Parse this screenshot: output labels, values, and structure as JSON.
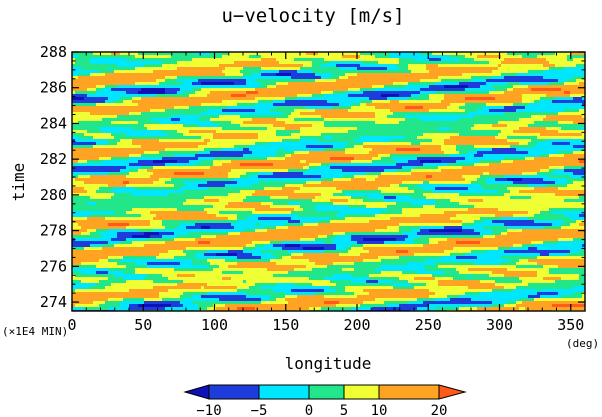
{
  "chart_data": {
    "type": "heatmap",
    "title": "u−velocity [m/s]",
    "xlabel": "longitude",
    "ylabel": "time",
    "x_unit": "(deg)",
    "y_unit": "(×1E4 MIN)",
    "xlim": [
      0,
      360
    ],
    "ylim": [
      273.5,
      288
    ],
    "x_ticks": [
      0,
      50,
      100,
      150,
      200,
      250,
      300,
      350
    ],
    "y_ticks": [
      274,
      276,
      278,
      280,
      282,
      284,
      286,
      288
    ],
    "x_tick_labels": [
      "0",
      "50",
      "100",
      "150",
      "200",
      "250",
      "300",
      "350"
    ],
    "y_tick_labels": [
      "274",
      "276",
      "278",
      "280",
      "282",
      "284",
      "286",
      "288"
    ],
    "colorbar": {
      "levels": [
        -10,
        -5,
        0,
        5,
        10,
        20
      ],
      "level_labels": [
        "−10",
        "−5",
        "0",
        "5",
        "10",
        "20"
      ],
      "colors": [
        "#1e3cdc",
        "#00e6ff",
        "#22e68a",
        "#f0ff33",
        "#ffa322"
      ],
      "under_color": "#1010b8",
      "over_color": "#ff5a1a"
    },
    "pattern": "eastward-propagating streaks tilted upward toward increasing longitude; values mostly between −10 and 20 m/s"
  }
}
